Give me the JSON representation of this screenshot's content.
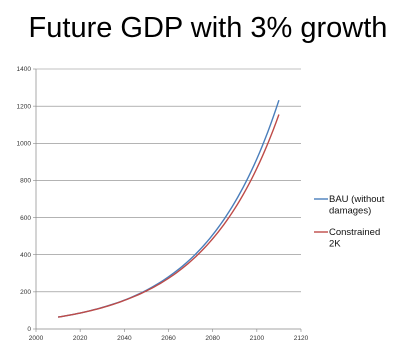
{
  "slide": {
    "title": "Future GDP with 3% growth"
  },
  "chart_data": {
    "type": "line",
    "title": "Future GDP with 3% growth",
    "xlabel": "",
    "ylabel": "",
    "xlim": [
      2000,
      2120
    ],
    "ylim": [
      0,
      1400
    ],
    "xticks": [
      2000,
      2020,
      2040,
      2060,
      2080,
      2100,
      2120
    ],
    "yticks": [
      0,
      200,
      400,
      600,
      800,
      1000,
      1200,
      1400
    ],
    "grid": "horizontal",
    "legend_position": "right",
    "series": [
      {
        "name": "BAU (without damages)",
        "legend_lines": [
          "BAU (without",
          "damages)"
        ],
        "color": "#4a7ebb",
        "x": [
          2010,
          2020,
          2030,
          2040,
          2050,
          2060,
          2070,
          2080,
          2090,
          2100,
          2110
        ],
        "y": [
          64,
          86,
          116,
          155,
          209,
          281,
          377,
          507,
          682,
          916,
          1232
        ]
      },
      {
        "name": "Constrained 2K",
        "legend_lines": [
          "Constrained",
          "2K"
        ],
        "color": "#be4b48",
        "x": [
          2010,
          2020,
          2030,
          2040,
          2050,
          2060,
          2070,
          2080,
          2090,
          2100,
          2110
        ],
        "y": [
          64,
          86,
          115,
          154,
          205,
          273,
          364,
          486,
          648,
          865,
          1155
        ]
      }
    ]
  }
}
